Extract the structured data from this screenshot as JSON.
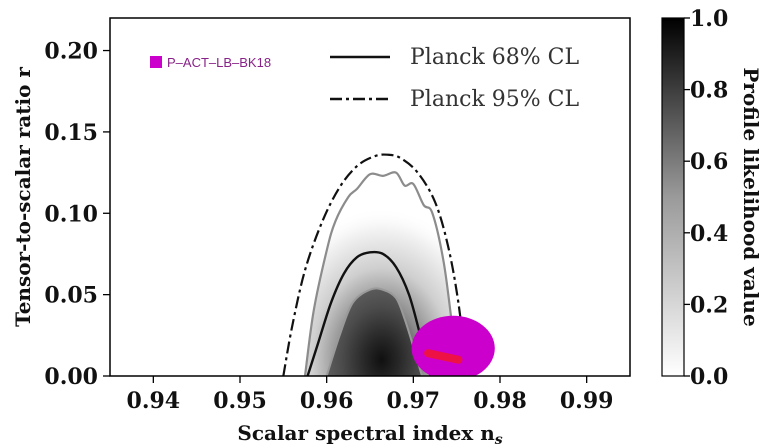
{
  "chart_data": {
    "type": "contour",
    "xlabel": "Scalar spectral index n",
    "xlabel_sub": "s",
    "ylabel": "Tensor-to-scalar ratio r",
    "xlim": [
      0.935,
      0.995
    ],
    "ylim": [
      0,
      0.22
    ],
    "xticks": [
      0.94,
      0.95,
      0.96,
      0.97,
      0.98,
      0.99
    ],
    "xtick_labels": [
      "0.94",
      "0.95",
      "0.96",
      "0.97",
      "0.98",
      "0.99"
    ],
    "yticks": [
      0,
      0.05,
      0.1,
      0.15,
      0.2
    ],
    "ytick_labels": [
      "0.00",
      "0.05",
      "0.10",
      "0.15",
      "0.20"
    ],
    "colorbar": {
      "label": "Profile likelihood value",
      "ticks": [
        0,
        0.2,
        0.4,
        0.6,
        0.8,
        1.0
      ],
      "tick_labels": [
        "0.0",
        "0.2",
        "0.4",
        "0.6",
        "0.8",
        "1.0"
      ],
      "colormap": "gray-white-to-black"
    },
    "legend": {
      "placement": "top",
      "entries": [
        {
          "label": "P–ACT–LB–BK18",
          "marker": "square",
          "color": "#cc00cc"
        },
        {
          "label": "Planck 68% CL",
          "style": "solid",
          "color": "#111111"
        },
        {
          "label": "Planck 95% CL",
          "style": "dashdot",
          "color": "#111111"
        }
      ]
    },
    "planck_68": {
      "x": [
        0.9578,
        0.959,
        0.9605,
        0.962,
        0.9635,
        0.965,
        0.9665,
        0.968,
        0.9695,
        0.9708,
        0.972
      ],
      "y": [
        0.0,
        0.02,
        0.045,
        0.063,
        0.073,
        0.076,
        0.075,
        0.067,
        0.05,
        0.025,
        0.0
      ]
    },
    "planck_95": {
      "x": [
        0.955,
        0.956,
        0.9575,
        0.9595,
        0.9615,
        0.9635,
        0.9655,
        0.967,
        0.9685,
        0.9705,
        0.9725,
        0.974,
        0.9752,
        0.9762
      ],
      "y": [
        0.0,
        0.03,
        0.065,
        0.095,
        0.116,
        0.129,
        0.135,
        0.136,
        0.134,
        0.125,
        0.107,
        0.08,
        0.045,
        0.0
      ]
    },
    "profile_contour": {
      "x": [
        0.9575,
        0.9585,
        0.96,
        0.961,
        0.9625,
        0.9635,
        0.965,
        0.9665,
        0.968,
        0.969,
        0.97,
        0.9712,
        0.9722,
        0.9735,
        0.9745,
        0.9752
      ],
      "y": [
        0.0,
        0.04,
        0.077,
        0.095,
        0.11,
        0.115,
        0.124,
        0.123,
        0.125,
        0.117,
        0.118,
        0.105,
        0.1,
        0.07,
        0.03,
        0.0
      ]
    },
    "profile_inner_contour": {
      "x": [
        0.96,
        0.9615,
        0.963,
        0.965,
        0.9665,
        0.968,
        0.969,
        0.97,
        0.971
      ],
      "y": [
        0.0,
        0.025,
        0.045,
        0.053,
        0.053,
        0.048,
        0.035,
        0.018,
        0.0
      ]
    },
    "p_act_lb_bk18": {
      "center_x": 0.9746,
      "center_y": 0.017,
      "sigma_x": 0.0048,
      "r_upper": 0.037,
      "color": "#cc00cc",
      "inner_color": "#ee1144",
      "inner_x": [
        0.9717,
        0.9752
      ],
      "inner_y": [
        0.014,
        0.01
      ]
    }
  }
}
